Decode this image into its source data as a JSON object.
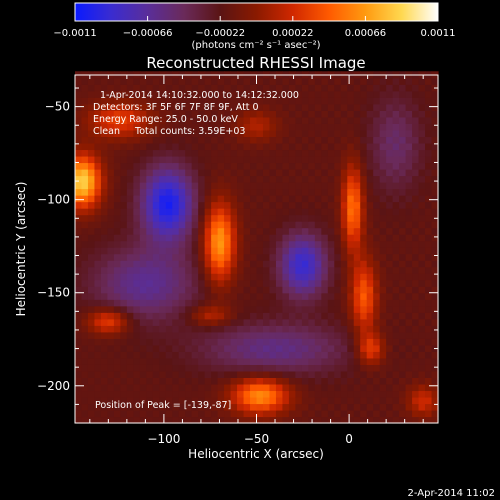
{
  "colors": {
    "background": "#000000",
    "text": "#ffffff",
    "colormap": [
      "#0a1aff",
      "#3a2cd0",
      "#5a2e9a",
      "#6a2a5a",
      "#5a1414",
      "#8a1a00",
      "#d02800",
      "#ff5a00",
      "#ff9a10",
      "#ffd850",
      "#ffffff"
    ]
  },
  "chart_data": {
    "type": "heatmap",
    "title": "Reconstructed RHESSI Image",
    "xlabel": "Heliocentric X (arcsec)",
    "ylabel": "Heliocentric Y (arcsec)",
    "xlim": [
      -148,
      48
    ],
    "ylim": [
      -220,
      -33
    ],
    "x_ticks": [
      -100,
      -50,
      0
    ],
    "x_tick_labels": [
      "−100",
      "−50",
      "0"
    ],
    "y_ticks": [
      -50,
      -100,
      -150,
      -200
    ],
    "y_tick_labels": [
      "−50",
      "−100",
      "−150",
      "−200"
    ],
    "colorbar": {
      "range": [
        -0.0011,
        0.0011
      ],
      "tick_values": [
        -0.0011,
        -0.00066,
        -0.00022,
        0.00022,
        0.00066,
        0.0011
      ],
      "tick_labels": [
        "−0.0011",
        "−0.00066",
        "−0.00022",
        "0.00022",
        "0.00066",
        "0.0011"
      ],
      "unit_label": "(photons cm⁻² s⁻¹ asec⁻²)"
    },
    "annotations": [
      "1-Apr-2014 14:10:32.000 to 14:12:32.000",
      "Detectors: 3F 5F 6F 7F 8F 9F, Att 0",
      "Energy Range: 25.0 - 50.0 keV",
      "Clean     Total counts: 3.59E+03"
    ],
    "peak_label": "Position of Peak = [-139,-87]",
    "peak": {
      "x": -139,
      "y": -87
    },
    "sources": [
      {
        "x": -144,
        "y": -90,
        "sx": 7,
        "sy": 10,
        "amp": 0.00105
      },
      {
        "x": -70,
        "y": -123,
        "sx": 6,
        "sy": 15,
        "amp": 0.00085
      },
      {
        "x": -124,
        "y": -57,
        "sx": 12,
        "sy": 7,
        "amp": 0.0005
      },
      {
        "x": -50,
        "y": -60,
        "sx": 8,
        "sy": 6,
        "amp": 0.0003
      },
      {
        "x": 2,
        "y": -104,
        "sx": 4,
        "sy": 16,
        "amp": 0.0007
      },
      {
        "x": 8,
        "y": -152,
        "sx": 5,
        "sy": 14,
        "amp": 0.0006
      },
      {
        "x": 12,
        "y": -180,
        "sx": 5,
        "sy": 6,
        "amp": 0.0005
      },
      {
        "x": -130,
        "y": -165,
        "sx": 8,
        "sy": 5,
        "amp": 0.00055
      },
      {
        "x": -75,
        "y": -162,
        "sx": 8,
        "sy": 4,
        "amp": 0.00035
      },
      {
        "x": -48,
        "y": -205,
        "sx": 11,
        "sy": 7,
        "amp": 0.0008
      },
      {
        "x": 40,
        "y": -208,
        "sx": 6,
        "sy": 6,
        "amp": 0.0004
      },
      {
        "x": -98,
        "y": -102,
        "sx": 10,
        "sy": 14,
        "amp": -0.00085
      },
      {
        "x": -25,
        "y": -135,
        "sx": 9,
        "sy": 12,
        "amp": -0.0007
      },
      {
        "x": -110,
        "y": -145,
        "sx": 20,
        "sy": 14,
        "amp": -0.00045
      },
      {
        "x": -40,
        "y": -180,
        "sx": 28,
        "sy": 10,
        "amp": -0.0004
      },
      {
        "x": 25,
        "y": -70,
        "sx": 10,
        "sy": 18,
        "amp": -0.0003
      }
    ]
  },
  "footer": {
    "timestamp": "2-Apr-2014 11:02"
  }
}
